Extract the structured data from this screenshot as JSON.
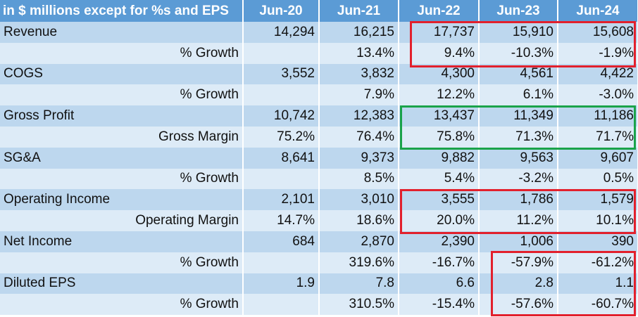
{
  "header": [
    "in $ millions except for %s and EPS",
    "Jun-20",
    "Jun-21",
    "Jun-22",
    "Jun-23",
    "Jun-24"
  ],
  "rows": [
    {
      "label": "Revenue",
      "values": [
        "14,294",
        "16,215",
        "17,737",
        "15,910",
        "15,608"
      ]
    },
    {
      "label": "% Growth",
      "values": [
        "",
        "13.4%",
        "9.4%",
        "-10.3%",
        "-1.9%"
      ]
    },
    {
      "label": "COGS",
      "values": [
        "3,552",
        "3,832",
        "4,300",
        "4,561",
        "4,422"
      ]
    },
    {
      "label": "% Growth",
      "values": [
        "",
        "7.9%",
        "12.2%",
        "6.1%",
        "-3.0%"
      ]
    },
    {
      "label": "Gross Profit",
      "values": [
        "10,742",
        "12,383",
        "13,437",
        "11,349",
        "11,186"
      ]
    },
    {
      "label": "Gross Margin",
      "values": [
        "75.2%",
        "76.4%",
        "75.8%",
        "71.3%",
        "71.7%"
      ]
    },
    {
      "label": "SG&A",
      "values": [
        "8,641",
        "9,373",
        "9,882",
        "9,563",
        "9,607"
      ]
    },
    {
      "label": "% Growth",
      "values": [
        "",
        "8.5%",
        "5.4%",
        "-3.2%",
        "0.5%"
      ]
    },
    {
      "label": "Operating Income",
      "values": [
        "2,101",
        "3,010",
        "3,555",
        "1,786",
        "1,579"
      ]
    },
    {
      "label": "Operating Margin",
      "values": [
        "14.7%",
        "18.6%",
        "20.0%",
        "11.2%",
        "10.1%"
      ]
    },
    {
      "label": "Net Income",
      "values": [
        "684",
        "2,870",
        "2,390",
        "1,006",
        "390"
      ]
    },
    {
      "label": "% Growth",
      "values": [
        "",
        "319.6%",
        "-16.7%",
        "-57.9%",
        "-61.2%"
      ]
    },
    {
      "label": "Diluted EPS",
      "values": [
        "1.9",
        "7.8",
        "6.6",
        "2.8",
        "1.1"
      ]
    },
    {
      "label": "% Growth",
      "values": [
        "",
        "310.5%",
        "-15.4%",
        "-57.6%",
        "-60.7%"
      ]
    }
  ],
  "colors": {
    "header_bg": "#5b9bd5",
    "row_dark": "#bdd7ee",
    "row_light": "#ddebf7",
    "highlight_red": "#e2202c",
    "highlight_green": "#1aa34a"
  }
}
